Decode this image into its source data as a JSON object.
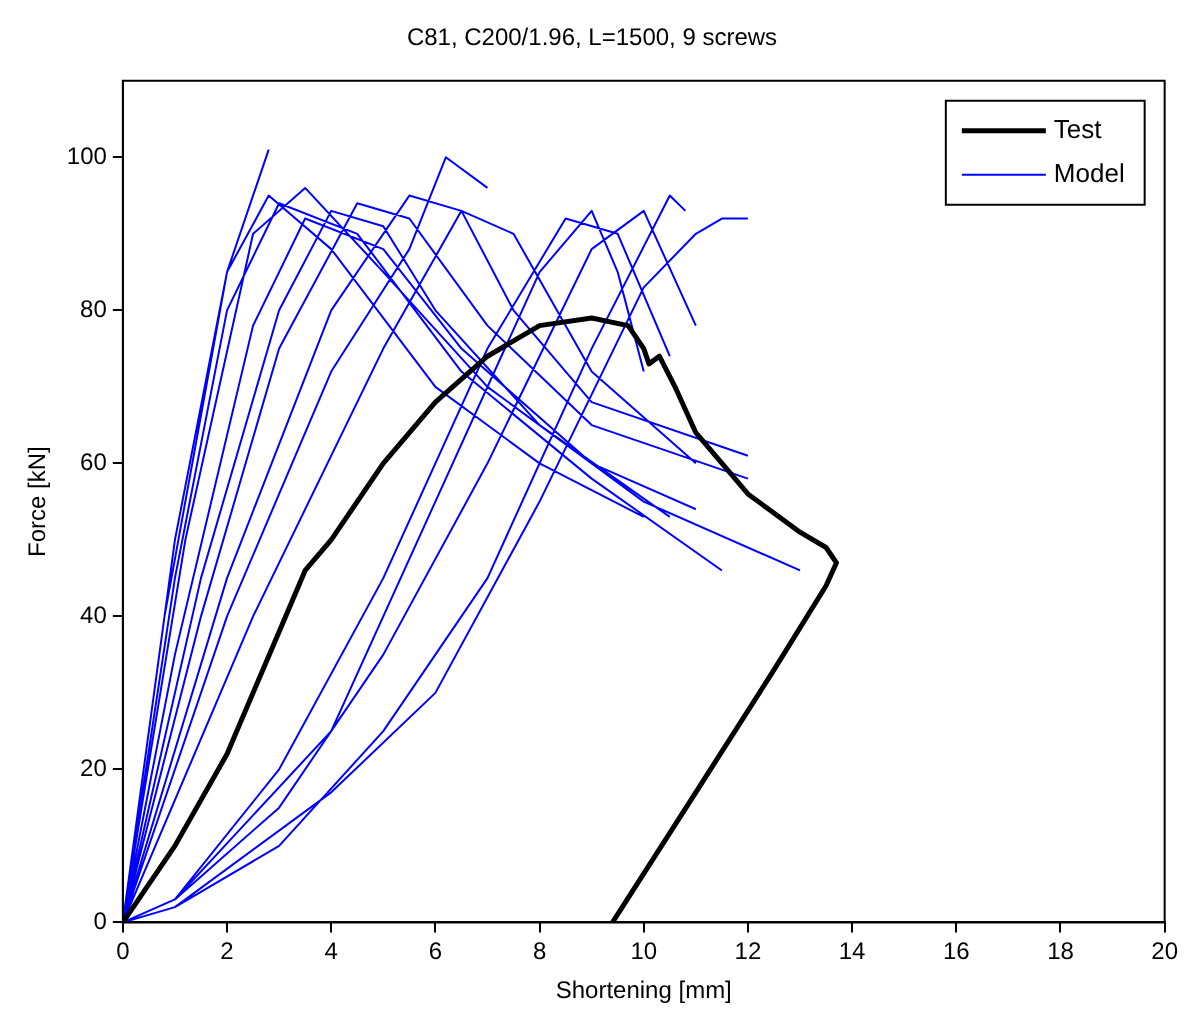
{
  "chart_data": {
    "type": "line",
    "title": "C81, C200/1.96, L=1500, 9 screws",
    "xlabel": "Shortening [mm]",
    "ylabel": "Force [kN]",
    "xlim": [
      0,
      20
    ],
    "xticks": [
      0,
      2,
      4,
      6,
      8,
      10,
      12,
      14,
      16,
      18,
      20
    ],
    "ylim": [
      0,
      110
    ],
    "yticks": [
      0,
      20,
      40,
      60,
      80,
      100
    ],
    "grid": false,
    "legend": "top right",
    "marker": "none",
    "line_style": "solid",
    "series": [
      {
        "name": "Test",
        "color": "#000000",
        "x": [
          0,
          1,
          2,
          3,
          3.5,
          4,
          5,
          6,
          7,
          8,
          9,
          9.7,
          10,
          10.1,
          10.3,
          10.6,
          11,
          12,
          13,
          13.5,
          13.7,
          13.5,
          12.5,
          11,
          9.4
        ],
        "values": [
          0,
          10,
          22,
          38,
          46,
          50,
          60,
          68,
          74,
          78,
          79,
          78,
          75,
          73,
          74,
          70,
          64,
          56,
          51,
          49,
          47,
          44,
          33,
          17,
          0
        ]
      },
      {
        "name": "Model",
        "color": "#0000ff",
        "x": [
          0,
          1,
          2,
          2.8,
          4,
          6,
          8,
          10,
          null,
          0,
          1,
          2,
          3,
          4.5,
          6.5,
          9,
          11.5,
          null,
          0,
          1.2,
          2.5,
          3.5,
          5,
          7,
          10,
          13,
          null,
          0,
          0.8,
          2,
          2.8,
          null,
          0,
          1.5,
          3,
          4,
          5,
          6,
          8,
          10.5,
          null,
          0,
          2,
          4,
          5.5,
          6.5,
          7.5,
          9,
          12,
          null,
          0,
          2,
          4,
          5.5,
          6.2,
          7,
          null,
          0,
          2.5,
          5,
          6.5,
          7.5,
          9,
          11,
          null,
          0,
          1,
          3,
          5,
          7,
          8.5,
          9.5,
          10.5,
          null,
          0,
          1,
          3,
          5,
          7,
          9,
          10,
          11,
          null,
          0,
          1,
          3,
          5,
          7,
          9,
          10.5,
          10.8,
          null,
          0,
          1,
          4,
          6,
          8,
          10,
          11,
          11.5,
          12,
          null,
          0,
          1,
          4,
          6,
          8,
          9,
          9.5,
          10,
          null,
          0,
          1.5,
          3,
          4.5,
          5.5,
          7,
          9,
          12,
          null,
          0,
          1,
          2.5,
          3.5,
          5,
          6.5,
          9,
          11
        ],
        "values": [
          0,
          50,
          85,
          95,
          88,
          70,
          60,
          53,
          null,
          0,
          45,
          80,
          94,
          90,
          72,
          58,
          46,
          null,
          0,
          50,
          90,
          96,
          85,
          70,
          55,
          46,
          null,
          0,
          40,
          85,
          101,
          null,
          0,
          45,
          80,
          93,
          91,
          80,
          65,
          53,
          null,
          0,
          45,
          80,
          95,
          93,
          80,
          68,
          61,
          null,
          0,
          40,
          72,
          88,
          100,
          96,
          null,
          0,
          40,
          75,
          93,
          90,
          72,
          60,
          null,
          0,
          3,
          20,
          45,
          75,
          92,
          90,
          74,
          null,
          0,
          3,
          15,
          35,
          60,
          88,
          93,
          78,
          null,
          0,
          2,
          10,
          25,
          45,
          75,
          95,
          93,
          null,
          0,
          2,
          17,
          30,
          55,
          83,
          90,
          92,
          92,
          null,
          0,
          3,
          25,
          55,
          85,
          93,
          85,
          72,
          null,
          0,
          40,
          75,
          94,
          92,
          78,
          65,
          58,
          null,
          0,
          35,
          78,
          92,
          88,
          75,
          60,
          54
        ]
      }
    ]
  }
}
